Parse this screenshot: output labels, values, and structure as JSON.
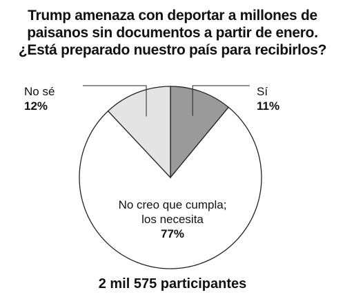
{
  "title": {
    "line1": "Trump amenaza con deportar a millones de",
    "line2": "paisanos sin documentos a partir de enero.",
    "line3": "¿Está preparado nuestro país para recibirlos?"
  },
  "chart_data": {
    "type": "pie",
    "title": "Trump amenaza con deportar a millones de paisanos sin documentos a partir de enero. ¿Está preparado nuestro país para recibirlos?",
    "slices": [
      {
        "label": "Sí",
        "value": 11,
        "display": "11%",
        "color": "#9a9a9a"
      },
      {
        "label": "No creo que cumpla; los necesita",
        "label_line1": "No creo que cumpla;",
        "label_line2": "los necesita",
        "value": 77,
        "display": "77%",
        "color": "#ffffff"
      },
      {
        "label": "No sé",
        "value": 12,
        "display": "12%",
        "color": "#e4e4e4"
      }
    ],
    "start_angle": "top (12 o'clock), clockwise"
  },
  "footer": {
    "participants": "2 mil 575 participantes"
  }
}
